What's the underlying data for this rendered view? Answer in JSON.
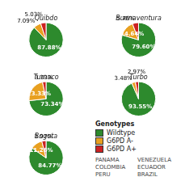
{
  "chart_data": [
    {
      "type": "pie",
      "title": "Quibdo",
      "categories": [
        "Wildtype",
        "G6PD A-",
        "G6PD A+"
      ],
      "values": [
        87.88,
        7.09,
        5.03
      ],
      "value_labels": [
        "87.88%",
        "7.09%",
        "5.03%"
      ],
      "colors": [
        "#2d8a2d",
        "#e8a020",
        "#cc2222"
      ],
      "data_labels": true,
      "legend": "lower right",
      "legend_title": "Genotypes",
      "annotations": [
        "PANAMA",
        "VENEZUELA",
        "COLOMBIA",
        "ECUADOR",
        "PERU",
        "BRAZIL"
      ]
    },
    {
      "type": "pie",
      "title": "Buenaventura",
      "categories": [
        "Wildtype",
        "G6PD A-",
        "G6PD A+"
      ],
      "values": [
        79.6,
        14.64,
        5.76
      ],
      "value_labels": [
        "79.60%",
        "14.64%",
        "5.76%"
      ],
      "colors": [
        "#2d8a2d",
        "#e8a020",
        "#cc2222"
      ],
      "data_labels": true
    },
    {
      "type": "pie",
      "title": "Tumaco",
      "categories": [
        "Wildtype",
        "G6PD A-",
        "G6PD A+"
      ],
      "values": [
        73.34,
        23.33,
        3.33
      ],
      "value_labels": [
        "73.34%",
        "23.33%",
        "3.33%"
      ],
      "colors": [
        "#2d8a2d",
        "#e8a020",
        "#cc2222"
      ],
      "data_labels": true
    },
    {
      "type": "pie",
      "title": "Turbo",
      "categories": [
        "Wildtype",
        "G6PD A-",
        "G6PD A+"
      ],
      "values": [
        93.55,
        3.48,
        2.97
      ],
      "value_labels": [
        "93.55%",
        "3.48%",
        "2.97%"
      ],
      "colors": [
        "#2d8a2d",
        "#e8a020",
        "#cc2222"
      ],
      "data_labels": true
    },
    {
      "type": "pie",
      "title": "Bogota",
      "categories": [
        "Wildtype",
        "G6PD A-",
        "G6PD A+"
      ],
      "values": [
        84.77,
        11.26,
        3.97
      ],
      "value_labels": [
        "84.77%",
        "11.26%",
        "3.97%"
      ],
      "colors": [
        "#2d8a2d",
        "#e8a020",
        "#cc2222"
      ],
      "data_labels": true
    }
  ]
}
